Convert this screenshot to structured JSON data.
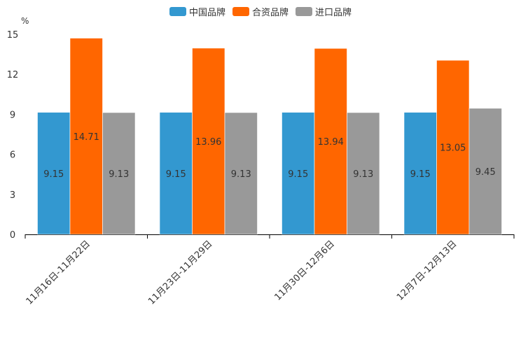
{
  "chart_data": {
    "type": "bar",
    "title": "",
    "xlabel": "",
    "ylabel": "%",
    "ylim": [
      0,
      15
    ],
    "yticks": [
      "0",
      "3",
      "6",
      "9",
      "12",
      "15"
    ],
    "categories": [
      "11月16日-11月22日",
      "11月23日-11月29日",
      "11月30日-12月6日",
      "12月7日-12月13日"
    ],
    "series": [
      {
        "name": "中国品牌",
        "color": "#3398d0",
        "values": [
          9.15,
          9.15,
          9.15,
          9.15
        ],
        "labels": [
          "9.15",
          "9.15",
          "9.15",
          "9.15"
        ]
      },
      {
        "name": "合资品牌",
        "color": "#ff6600",
        "values": [
          14.71,
          13.96,
          13.94,
          13.05
        ],
        "labels": [
          "14.71",
          "13.96",
          "13.94",
          "13.05"
        ]
      },
      {
        "name": "进口品牌",
        "color": "#999999",
        "values": [
          9.13,
          9.13,
          9.13,
          9.45
        ],
        "labels": [
          "9.13",
          "9.13",
          "9.13",
          "9.45"
        ]
      }
    ],
    "legend_position": "top-center",
    "grid": false
  }
}
